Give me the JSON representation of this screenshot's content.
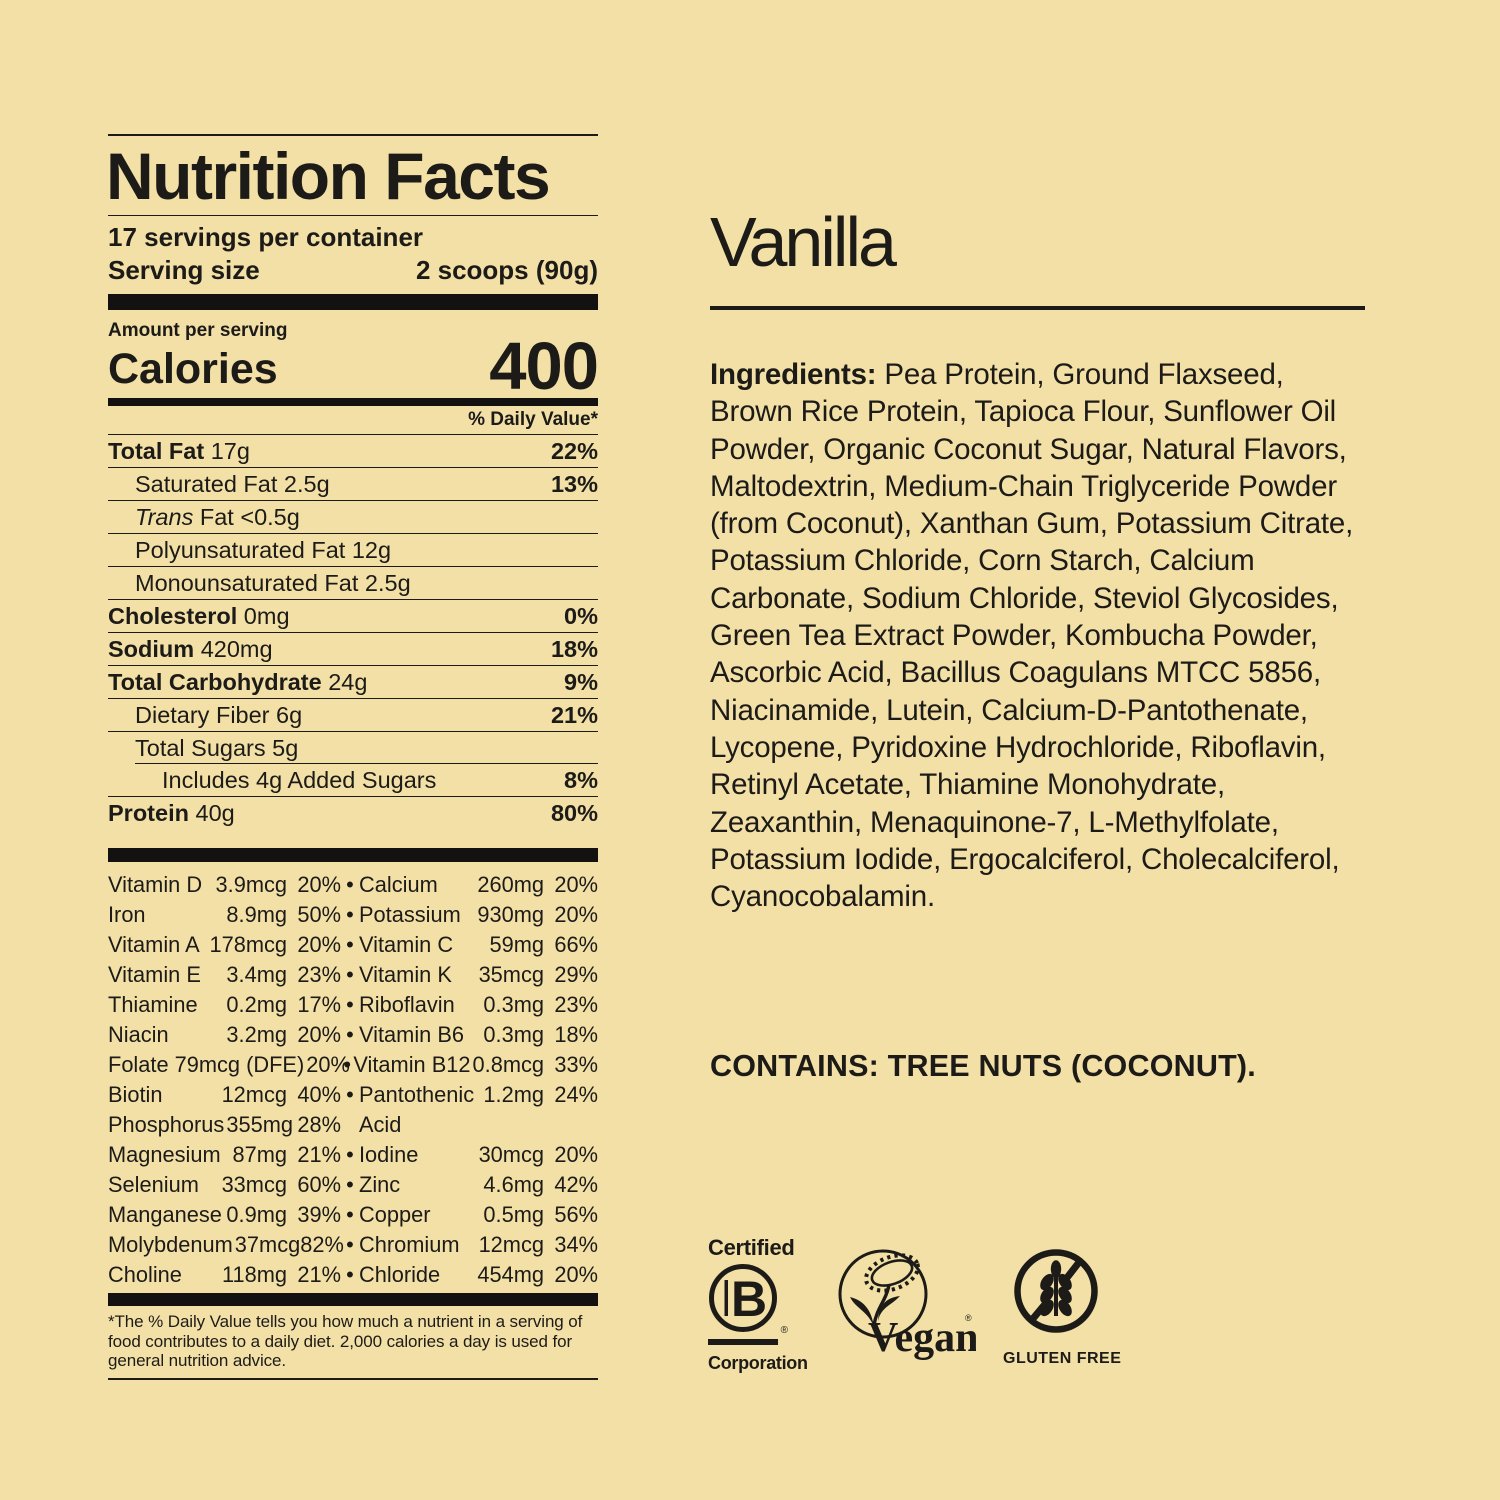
{
  "colors": {
    "background": "#F3E0A6",
    "ink": "#1C1B18"
  },
  "nutrition_label": {
    "title": "Nutrition Facts",
    "servings_per_container": "17 servings per container",
    "serving_size_label": "Serving size",
    "serving_size_value": "2 scoops (90g)",
    "amount_per_serving": "Amount per serving",
    "calories_label": "Calories",
    "calories_value": "400",
    "daily_value_header": "% Daily Value*",
    "nutrient_rows": [
      {
        "bold": "Total Fat",
        "rest": "17g",
        "dv": "22%",
        "indent": 0
      },
      {
        "name": "Saturated Fat 2.5g",
        "dv": "13%",
        "indent": 1
      },
      {
        "italic": "Trans",
        "name": "Fat <0.5g",
        "dv": "",
        "indent": 1
      },
      {
        "name": "Polyunsaturated Fat 12g",
        "dv": "",
        "indent": 1
      },
      {
        "name": "Monounsaturated Fat 2.5g",
        "dv": "",
        "indent": 1
      },
      {
        "bold": "Cholesterol",
        "rest": "0mg",
        "dv": "0%",
        "indent": 0
      },
      {
        "bold": "Sodium",
        "rest": "420mg",
        "dv": "18%",
        "indent": 0
      },
      {
        "bold": "Total Carbohydrate",
        "rest": "24g",
        "dv": "9%",
        "indent": 0
      },
      {
        "name": "Dietary Fiber 6g",
        "dv": "21%",
        "indent": 1
      },
      {
        "name": "Total Sugars 5g",
        "dv": "",
        "indent": 1,
        "rule_indent": true
      },
      {
        "name": "Includes 4g Added Sugars",
        "dv": "8%",
        "indent": 2
      },
      {
        "bold": "Protein",
        "rest": "40g",
        "dv": "80%",
        "indent": 0
      }
    ],
    "micronutrient_rows": [
      {
        "l": [
          "Vitamin D",
          "3.9mcg",
          "20%"
        ],
        "b": "•",
        "r": [
          "Calcium",
          "260mg",
          "20%"
        ]
      },
      {
        "l": [
          "Iron",
          "8.9mg",
          "50%"
        ],
        "b": "•",
        "r": [
          "Potassium",
          "930mg",
          "20%"
        ]
      },
      {
        "l": [
          "Vitamin A",
          "178mcg",
          "20%"
        ],
        "b": "•",
        "r": [
          "Vitamin C",
          "59mg",
          "66%"
        ]
      },
      {
        "l": [
          "Vitamin E",
          "3.4mg",
          "23%"
        ],
        "b": "•",
        "r": [
          "Vitamin K",
          "35mcg",
          "29%"
        ]
      },
      {
        "l": [
          "Thiamine",
          "0.2mg",
          "17%"
        ],
        "b": "•",
        "r": [
          "Riboflavin",
          "0.3mg",
          "23%"
        ]
      },
      {
        "l": [
          "Niacin",
          "3.2mg",
          "20%"
        ],
        "b": "•",
        "r": [
          "Vitamin B6",
          "0.3mg",
          "18%"
        ]
      },
      {
        "l": [
          "Folate 79mcg (DFE)",
          "",
          "20%"
        ],
        "b": "•",
        "r": [
          "Vitamin B12",
          "0.8mcg",
          "33%"
        ]
      },
      {
        "l": [
          "Biotin",
          "12mcg",
          "40%"
        ],
        "b": "•",
        "r": [
          "Pantothenic",
          "1.2mg",
          "24%"
        ]
      },
      {
        "l": [
          "Phosphorus",
          "355mg",
          "28%"
        ],
        "b": "",
        "r": [
          "Acid",
          "",
          ""
        ]
      },
      {
        "l": [
          "Magnesium",
          "87mg",
          "21%"
        ],
        "b": "•",
        "r": [
          "Iodine",
          "30mcg",
          "20%"
        ]
      },
      {
        "l": [
          "Selenium",
          "33mcg",
          "60%"
        ],
        "b": "•",
        "r": [
          "Zinc",
          "4.6mg",
          "42%"
        ]
      },
      {
        "l": [
          "Manganese",
          "0.9mg",
          "39%"
        ],
        "b": "•",
        "r": [
          "Copper",
          "0.5mg",
          "56%"
        ]
      },
      {
        "l": [
          "Molybdenum",
          "37mcg",
          "82%"
        ],
        "b": "•",
        "r": [
          "Chromium",
          "12mcg",
          "34%"
        ]
      },
      {
        "l": [
          "Choline",
          "118mg",
          "21%"
        ],
        "b": "•",
        "r": [
          "Chloride",
          "454mg",
          "20%"
        ]
      }
    ],
    "footnote": "*The % Daily Value tells you how much a nutrient in a serving of food contributes to a daily diet. 2,000 calories a day is used for general nutrition advice."
  },
  "flavor_panel": {
    "flavor_name": "Vanilla",
    "ingredients_label": "Ingredients:",
    "ingredients": "Pea Protein, Ground Flaxseed, Brown Rice Protein, Tapioca Flour, Sunflower Oil Powder, Organic Coconut Sugar, Natural Flavors, Maltodextrin, Medium-Chain Triglyceride Powder (from Coconut), Xanthan Gum, Potassium Citrate, Potassium Chloride, Corn Starch, Calcium Carbonate, Sodium Chloride, Steviol Glycosides, Green Tea Extract Powder, Kombucha Powder, Ascorbic Acid, Bacillus Coagulans MTCC 5856, Niacinamide, Lutein, Calcium-D-Pantothenate, Lycopene, Pyridoxine Hydrochloride, Riboflavin, Retinyl Acetate, Thiamine Monohydrate, Zeaxanthin, Menaquinone-7, L-Methylfolate, Potassium Iodide, Ergocalciferol, Cholecalciferol, Cyanocobalamin.",
    "contains": "CONTAINS: TREE NUTS (COCONUT).",
    "badges": {
      "b_corp": {
        "top": "Certified",
        "letter": "B",
        "registered": "®",
        "bottom": "Corporation"
      },
      "vegan": {
        "wordmark": "Vegan",
        "trademark": "®"
      },
      "gluten_free": {
        "caption": "GLUTEN FREE"
      }
    }
  }
}
